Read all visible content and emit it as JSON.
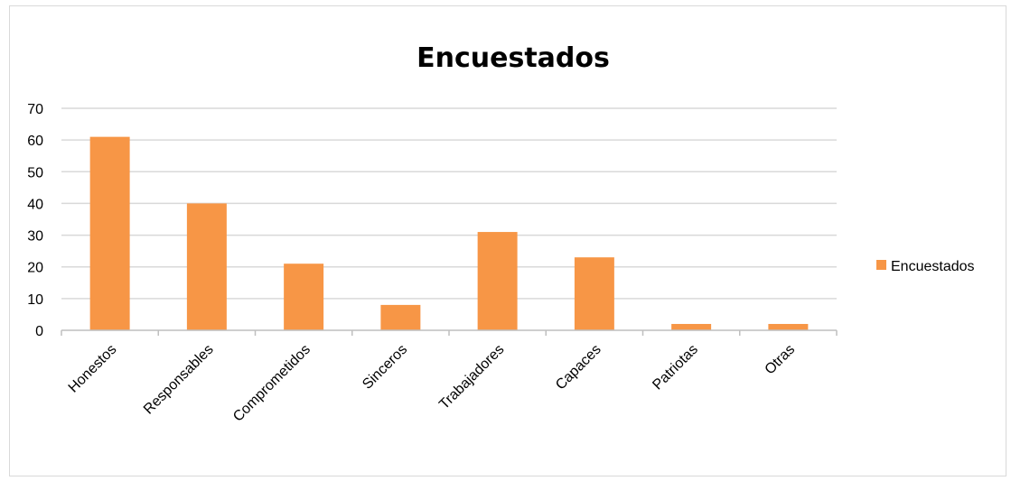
{
  "chart_data": {
    "type": "bar",
    "title": "Encuestados",
    "xlabel": "",
    "ylabel": "",
    "categories": [
      "Honestos",
      "Responsables",
      "Comprometidos",
      "Sinceros",
      "Trabajadores",
      "Capaces",
      "Patriotas",
      "Otras"
    ],
    "series": [
      {
        "name": "Encuestados",
        "values": [
          61,
          40,
          21,
          8,
          31,
          23,
          2,
          2
        ]
      }
    ],
    "ylim": [
      0,
      70
    ],
    "yticks": [
      "0",
      "10",
      "20",
      "30",
      "40",
      "50",
      "60",
      "70"
    ],
    "grid": true,
    "legend": "right",
    "colors": {
      "bar": "#f79646",
      "grid": "#d9d9d9",
      "axis": "#bfbfbf"
    }
  }
}
